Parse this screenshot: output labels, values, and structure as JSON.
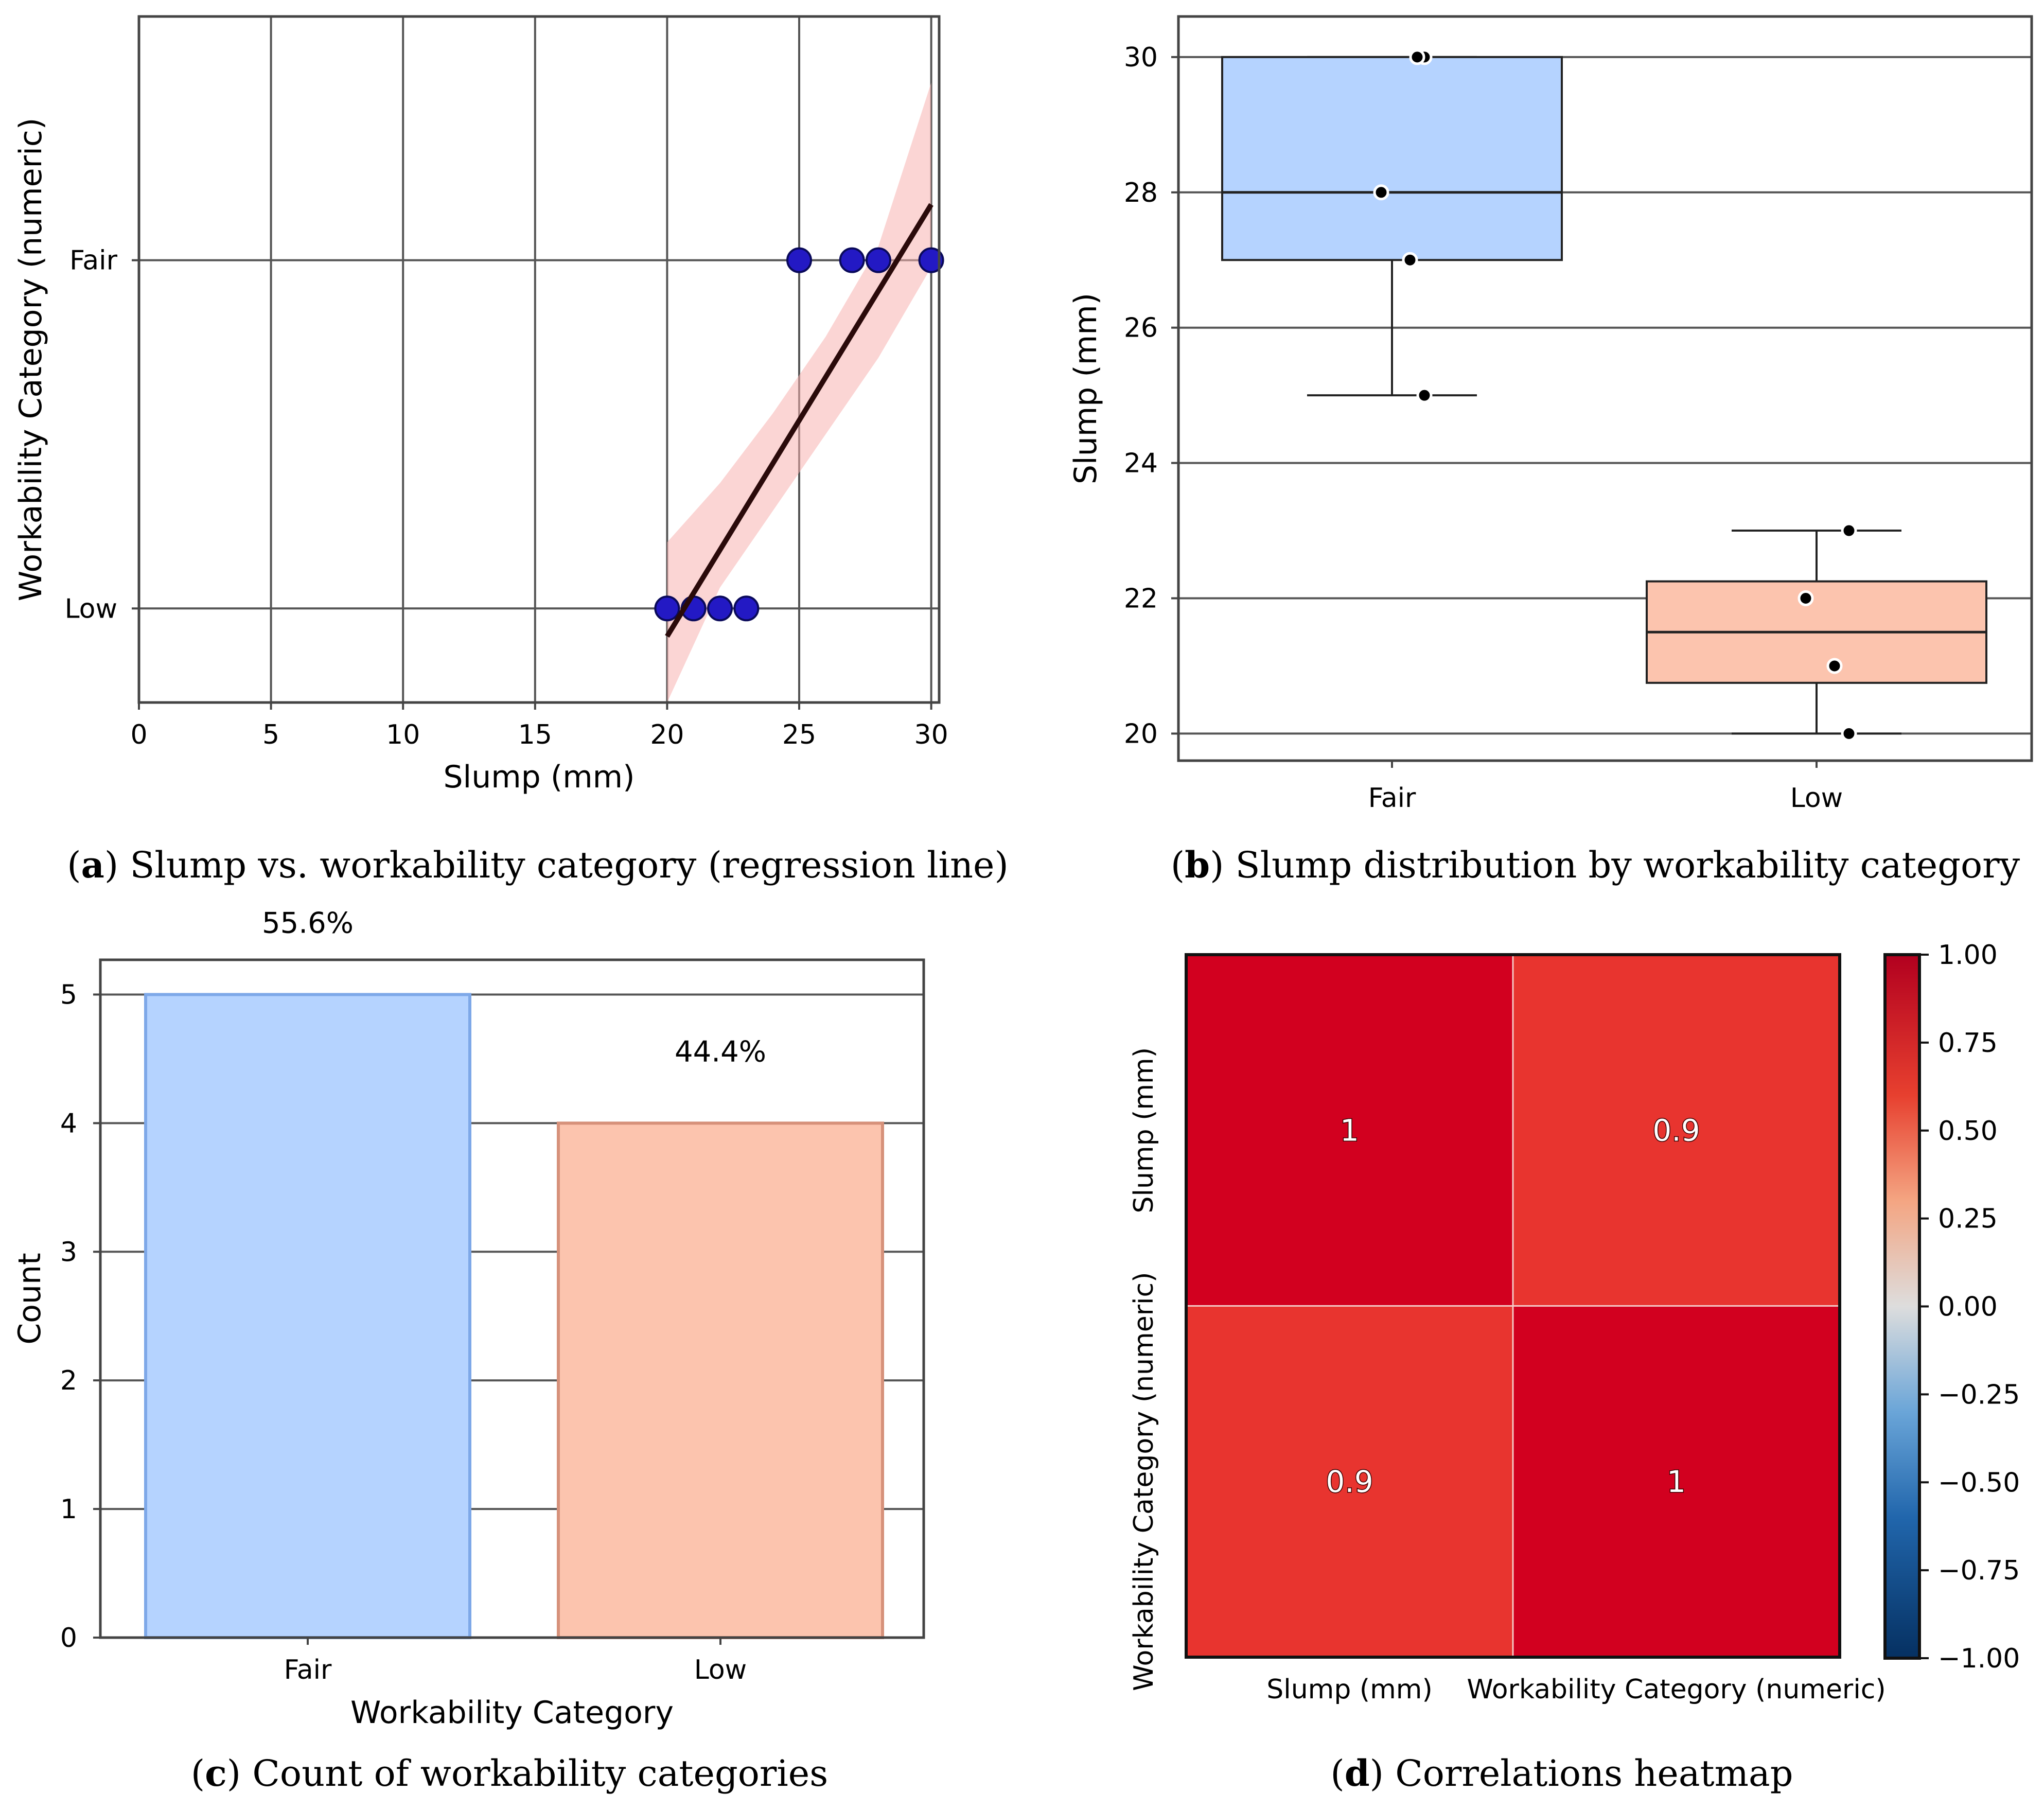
{
  "colors": {
    "fair": "#b5d3ff",
    "fair_edge": "#7ea8e8",
    "low": "#fcc4ae",
    "low_edge": "#d6917a",
    "points": "#2319c4",
    "regline": "#2a0a0a",
    "ci_band": "#f7b3b0",
    "heat_high": "#d2001f",
    "heat_mid": "#e8342f",
    "grid": "#555555"
  },
  "chart_data": [
    {
      "panel": "a",
      "type": "scatter",
      "caption_label": "a",
      "caption_text": " Slump vs. workability category (regression line)",
      "xlabel": "Slump (mm)",
      "ylabel": "Workability Category (numeric)",
      "xlim": [
        0,
        30.3
      ],
      "ylim": [
        -0.27,
        1.7
      ],
      "x_ticks": [
        0,
        5,
        10,
        15,
        20,
        25,
        30
      ],
      "x_tick_labels": [
        "0",
        "5",
        "10",
        "15",
        "20",
        "25",
        "30"
      ],
      "y_ticks": [
        0,
        1
      ],
      "y_tick_labels": [
        "Low",
        "Fair"
      ],
      "points": [
        {
          "x": 20,
          "y": 0
        },
        {
          "x": 21,
          "y": 0
        },
        {
          "x": 22,
          "y": 0
        },
        {
          "x": 23,
          "y": 0
        },
        {
          "x": 25,
          "y": 1
        },
        {
          "x": 27,
          "y": 1
        },
        {
          "x": 28,
          "y": 1
        },
        {
          "x": 30,
          "y": 1
        }
      ],
      "regression": {
        "x": [
          20,
          30
        ],
        "y": [
          -0.08,
          1.16
        ]
      },
      "ci_band": {
        "x": [
          20,
          22,
          24,
          26,
          28,
          30
        ],
        "lower": [
          -0.27,
          0.06,
          0.28,
          0.5,
          0.72,
          0.98
        ],
        "upper": [
          0.19,
          0.36,
          0.56,
          0.78,
          1.04,
          1.51
        ]
      }
    },
    {
      "panel": "b",
      "type": "box",
      "caption_label": "b",
      "caption_text": " Slump distribution by workability category",
      "xlabel": "",
      "ylabel": "Slump (mm)",
      "ylim": [
        19.6,
        30.6
      ],
      "y_ticks": [
        20,
        22,
        24,
        26,
        28,
        30
      ],
      "y_tick_labels": [
        "20",
        "22",
        "24",
        "26",
        "28",
        "30"
      ],
      "categories": [
        "Fair",
        "Low"
      ],
      "boxes": [
        {
          "category": "Fair",
          "whisker_low": 25,
          "q1": 27,
          "median": 28,
          "q3": 30,
          "whisker_high": 30,
          "points": [
            30,
            28,
            27,
            25,
            30
          ]
        },
        {
          "category": "Low",
          "whisker_low": 20,
          "q1": 20.75,
          "median": 21.5,
          "q3": 22.25,
          "whisker_high": 23,
          "points": [
            23,
            22,
            21,
            20
          ]
        }
      ]
    },
    {
      "panel": "c",
      "type": "bar",
      "caption_label": "c",
      "caption_text": " Count of workability categories",
      "xlabel": "Workability Category",
      "ylabel": "Count",
      "ylim": [
        0,
        5.27
      ],
      "y_ticks": [
        0,
        1,
        2,
        3,
        4,
        5
      ],
      "y_tick_labels": [
        "0",
        "1",
        "2",
        "3",
        "4",
        "5"
      ],
      "categories": [
        "Fair",
        "Low"
      ],
      "values": [
        5,
        4
      ],
      "data_labels": [
        "55.6%",
        "44.4%"
      ]
    },
    {
      "panel": "d",
      "type": "heatmap",
      "caption_label": "d",
      "caption_text": " Correlations heatmap",
      "row_labels": [
        "Slump (mm)",
        "Workability Category (numeric)"
      ],
      "col_labels": [
        "Slump (mm)",
        "Workability Category (numeric)"
      ],
      "values": [
        [
          1,
          0.9
        ],
        [
          0.9,
          1
        ]
      ],
      "cell_labels": [
        [
          "1",
          "0.9"
        ],
        [
          "0.9",
          "1"
        ]
      ],
      "colorbar": {
        "range": [
          -1,
          1
        ],
        "ticks": [
          1,
          0.75,
          0.5,
          0.25,
          0,
          -0.25,
          -0.5,
          -0.75,
          -1
        ],
        "tick_labels": [
          "1.00",
          "0.75",
          "0.50",
          "0.25",
          "0.00",
          "−0.25",
          "−0.50",
          "−0.75",
          "−1.00"
        ]
      }
    }
  ]
}
